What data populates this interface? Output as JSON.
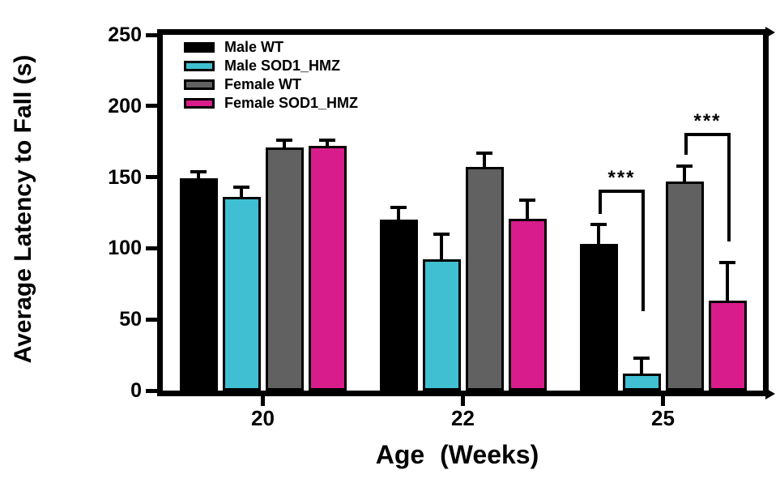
{
  "chart_data": {
    "type": "bar",
    "title": "",
    "xlabel": "Age  (Weeks)",
    "ylabel": "Average Latency to Fall (s)",
    "categories": [
      "20",
      "22",
      "25"
    ],
    "series": [
      {
        "name": "Male WT",
        "color": "#000000",
        "values": [
          149,
          120,
          103
        ],
        "errors": [
          6,
          10,
          15
        ]
      },
      {
        "name": "Male SOD1_HMZ",
        "color": "#40BFD2",
        "values": [
          136,
          92,
          12
        ],
        "errors": [
          8,
          19,
          12
        ]
      },
      {
        "name": "Female WT",
        "color": "#616161",
        "values": [
          171,
          157,
          147
        ],
        "errors": [
          6,
          11,
          12
        ]
      },
      {
        "name": "Female SOD1_HMZ",
        "color": "#D81C8C",
        "values": [
          172,
          121,
          63
        ],
        "errors": [
          5,
          14,
          28
        ]
      }
    ],
    "ylim": [
      0,
      250
    ],
    "yticks": [
      0,
      50,
      100,
      150,
      200,
      250
    ],
    "grid": false,
    "legend_position": "top-left",
    "error_bars": "upper",
    "axis_color": "#000000",
    "significance": [
      {
        "category": "25",
        "between": [
          "Male WT",
          "Male SOD1_HMZ"
        ],
        "label": "***",
        "bracket_y": 139,
        "left_drop_to": 124,
        "right_drop_to": 56
      },
      {
        "category": "25",
        "between": [
          "Female WT",
          "Female SOD1_HMZ"
        ],
        "label": "***",
        "bracket_y": 179,
        "left_drop_to": 166,
        "right_drop_to": 105
      }
    ]
  }
}
